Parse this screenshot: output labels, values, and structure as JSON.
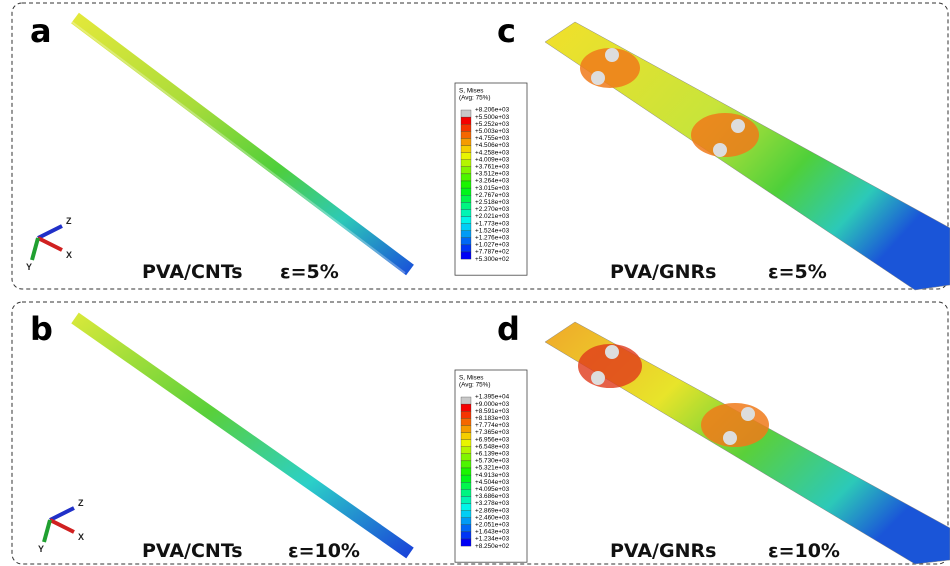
{
  "panels": [
    {
      "label": "a",
      "material": "PVA/CNTs",
      "strain": "ε=5%"
    },
    {
      "label": "c",
      "material": "PVA/GNRs",
      "strain": "ε=5%"
    },
    {
      "label": "b",
      "material": "PVA/CNTs",
      "strain": "ε=10%"
    },
    {
      "label": "d",
      "material": "PVA/GNRs",
      "strain": "ε=10%"
    }
  ],
  "axes": [
    "Z",
    "X",
    "Y"
  ],
  "legends": [
    {
      "title": "S, Mises",
      "avg": "(Avg: 75%)",
      "values": [
        "+8.206e+03",
        "+5.500e+03",
        "+5.252e+03",
        "+5.003e+03",
        "+4.755e+03",
        "+4.506e+03",
        "+4.258e+03",
        "+4.009e+03",
        "+3.761e+03",
        "+3.512e+03",
        "+3.264e+03",
        "+3.015e+03",
        "+2.767e+03",
        "+2.518e+03",
        "+2.270e+03",
        "+2.021e+03",
        "+1.773e+03",
        "+1.524e+03",
        "+1.276e+03",
        "+1.027e+03",
        "+7.787e+02",
        "+5.300e+02"
      ]
    },
    {
      "title": "S, Mises",
      "avg": "(Avg: 75%)",
      "values": [
        "+1.395e+04",
        "+9.000e+03",
        "+8.591e+03",
        "+8.183e+03",
        "+7.774e+03",
        "+7.365e+03",
        "+6.956e+03",
        "+6.548e+03",
        "+6.139e+03",
        "+5.730e+03",
        "+5.321e+03",
        "+4.913e+03",
        "+4.504e+03",
        "+4.095e+03",
        "+3.686e+03",
        "+3.278e+03",
        "+2.869e+03",
        "+2.460e+03",
        "+2.051e+03",
        "+1.643e+03",
        "+1.234e+03",
        "+8.250e+02"
      ]
    }
  ]
}
